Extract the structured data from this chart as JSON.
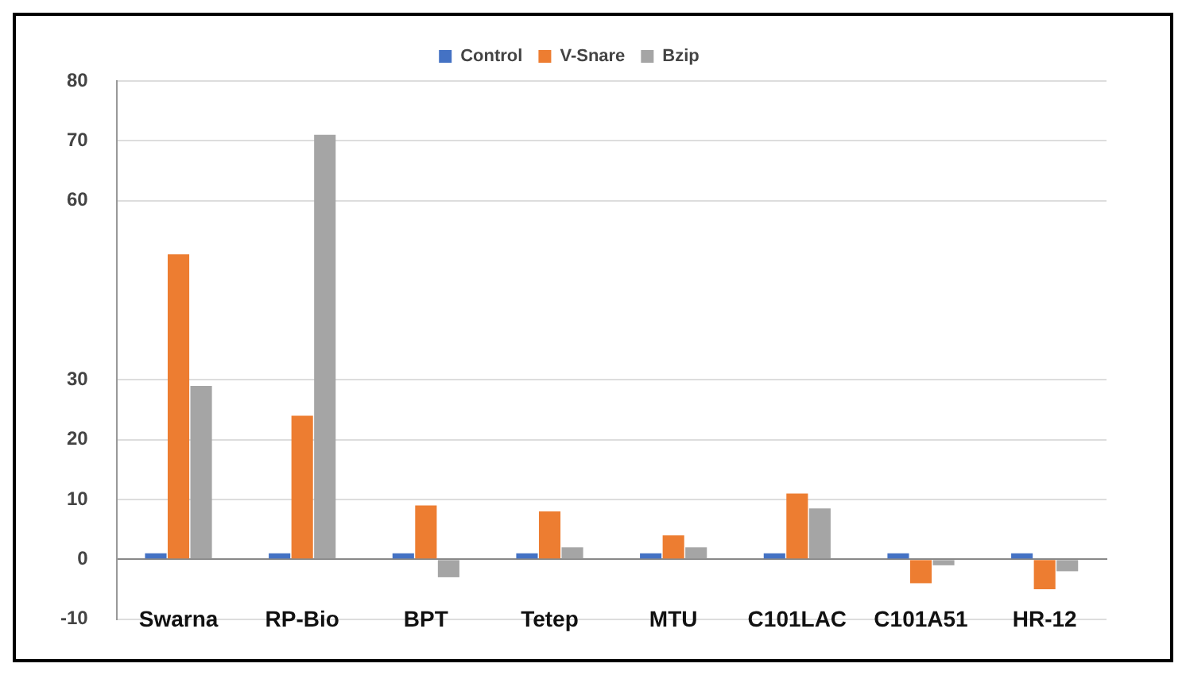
{
  "chart_data": {
    "type": "bar",
    "categories": [
      "Swarna",
      "RP-Bio",
      "BPT",
      "Tetep",
      "MTU",
      "C101LAC",
      "C101A51",
      "HR-12"
    ],
    "series": [
      {
        "name": "Control",
        "color": "#4472c4",
        "values": [
          1,
          1,
          1,
          1,
          1,
          1,
          1,
          1
        ]
      },
      {
        "name": "V-Snare",
        "color": "#ed7d31",
        "values": [
          51,
          24,
          9,
          8,
          4,
          11,
          -4,
          -5
        ]
      },
      {
        "name": "Bzip",
        "color": "#a5a5a5",
        "values": [
          29,
          71,
          -3,
          2,
          2,
          8.5,
          -1,
          -2
        ]
      }
    ],
    "ylim": [
      -10,
      80
    ],
    "yticks": [
      -10,
      0,
      10,
      20,
      30,
      60,
      70,
      80
    ],
    "grid": "y",
    "legend": "top"
  }
}
